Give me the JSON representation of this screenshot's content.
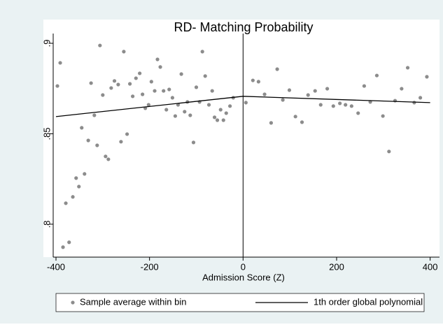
{
  "chart_data": {
    "type": "scatter",
    "title": "RD- Matching Probability",
    "x_label": "Admission Score (Z)",
    "xlim": [
      -406,
      420
    ],
    "ylim": [
      0.7818,
      0.9054
    ],
    "xticks": [
      -400,
      -200,
      0,
      200,
      400
    ],
    "yticks": [
      {
        "value": 0.8,
        "label": ".8"
      },
      {
        "value": 0.85,
        "label": ".85"
      },
      {
        "value": 0.9,
        "label": ".9"
      }
    ],
    "xline": 0,
    "legend": "bottom",
    "series": [
      {
        "name": "Sample average within bin",
        "type": "scatter",
        "color": "#8c8c8c",
        "x": [
          -397,
          -391,
          -385,
          -379,
          -372,
          -364,
          -357,
          -351,
          -345,
          -339,
          -331,
          -325,
          -318,
          -312,
          -306,
          -300,
          -294,
          -288,
          -282,
          -275,
          -267,
          -261,
          -255,
          -248,
          -242,
          -236,
          -229,
          -221,
          -215,
          -209,
          -202,
          -196,
          -189,
          -183,
          -177,
          -170,
          -164,
          -158,
          -151,
          -145,
          -139,
          -132,
          -125,
          -119,
          -113,
          -106,
          -100,
          -93,
          -87,
          -81,
          -73,
          -66,
          -61,
          -55,
          -48,
          -42,
          -36,
          -28,
          -21,
          6,
          21,
          33,
          46,
          60,
          73,
          85,
          99,
          112,
          126,
          139,
          154,
          166,
          180,
          193,
          207,
          219,
          232,
          246,
          259,
          272,
          286,
          299,
          312,
          325,
          339,
          352,
          366,
          379,
          393
        ],
        "values": [
          0.8764,
          0.8892,
          0.7873,
          0.8116,
          0.79,
          0.8151,
          0.8255,
          0.8208,
          0.8533,
          0.8278,
          0.8463,
          0.878,
          0.8602,
          0.8436,
          0.8988,
          0.8714,
          0.8375,
          0.8359,
          0.8753,
          0.8792,
          0.8772,
          0.8456,
          0.8954,
          0.8498,
          0.8776,
          0.8707,
          0.8807,
          0.8834,
          0.8718,
          0.8641,
          0.866,
          0.8788,
          0.8737,
          0.8911,
          0.8869,
          0.8737,
          0.8633,
          0.8745,
          0.8699,
          0.8598,
          0.866,
          0.883,
          0.8622,
          0.8676,
          0.8602,
          0.8452,
          0.8757,
          0.8676,
          0.8954,
          0.8819,
          0.866,
          0.8737,
          0.8591,
          0.8575,
          0.8633,
          0.8575,
          0.8614,
          0.8653,
          0.8699,
          0.8672,
          0.8795,
          0.8788,
          0.8718,
          0.856,
          0.8857,
          0.8687,
          0.8741,
          0.8595,
          0.8564,
          0.8714,
          0.8737,
          0.866,
          0.8749,
          0.8653,
          0.8668,
          0.866,
          0.8653,
          0.8614,
          0.8764,
          0.8676,
          0.8822,
          0.8598,
          0.8402,
          0.8683,
          0.8749,
          0.8865,
          0.8672,
          0.8699,
          0.8815
        ]
      },
      {
        "name": "1th order global polynomial",
        "type": "line",
        "color": "#000000",
        "x": [
          -400,
          0,
          0,
          400
        ],
        "values": [
          0.8595,
          0.8707,
          0.8707,
          0.8672
        ]
      }
    ]
  }
}
